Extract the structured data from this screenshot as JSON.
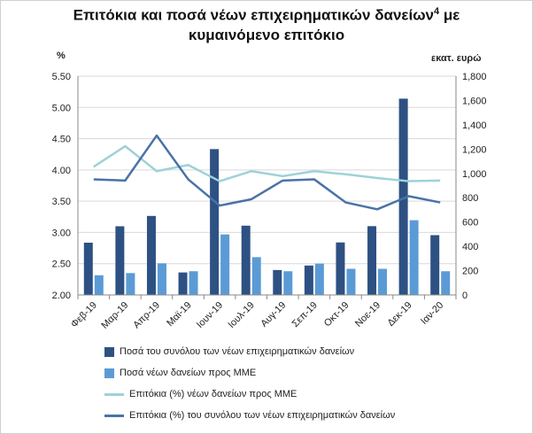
{
  "title_line1": "Επιτόκια και ποσά νέων επιχειρηματικών δανείων",
  "title_sup": "4",
  "title_suffix": " με",
  "title_line2": "κυμαινόμενο επιτόκιο",
  "colors": {
    "bar_total": "#2e5183",
    "bar_sme": "#5b9bd5",
    "line_sme": "#9fd1d9",
    "line_total": "#4a72a8",
    "grid": "#d9d9d9",
    "axis": "#888888"
  },
  "chart_data": {
    "type": "bar+line",
    "categories": [
      "Φεβ-19",
      "Μαρ-19",
      "Απρ-19",
      "Μαϊ-19",
      "Ιουν-19",
      "Ιουλ-19",
      "Αυγ-19",
      "Σεπ-19",
      "Οκτ-19",
      "Νοε-19",
      "Δεκ-19",
      "Ιαν-20"
    ],
    "left_axis": {
      "label": "%",
      "min": 2.0,
      "max": 5.5,
      "step": 0.5,
      "tick_labels": [
        "2.00",
        "2.50",
        "3.00",
        "3.50",
        "4.00",
        "4.50",
        "5.00",
        "5.50"
      ]
    },
    "right_axis": {
      "label": "εκατ. ευρώ",
      "min": 0,
      "max": 1800,
      "step": 200,
      "tick_labels": [
        "0",
        "200",
        "400",
        "600",
        "800",
        "1,000",
        "1,200",
        "1,400",
        "1,600",
        "1,800"
      ]
    },
    "series": [
      {
        "name": "Ποσά του συνόλου των νέων επιχειρηματικών δανείων",
        "kind": "bar",
        "axis": "right",
        "values": [
          430,
          565,
          650,
          185,
          1200,
          570,
          205,
          242,
          432,
          566,
          1615,
          492
        ]
      },
      {
        "name": "Ποσά νέων δανείων προς ΜΜΕ",
        "kind": "bar",
        "axis": "right",
        "values": [
          162,
          180,
          260,
          195,
          498,
          311,
          195,
          258,
          215,
          215,
          615,
          195
        ]
      },
      {
        "name": "Επιτόκια (%) νέων δανείων προς ΜΜΕ",
        "kind": "line",
        "axis": "left",
        "values": [
          4.05,
          4.38,
          3.98,
          4.08,
          3.82,
          3.98,
          3.9,
          3.98,
          3.93,
          3.87,
          3.82,
          3.83
        ]
      },
      {
        "name": "Επιτόκια (%) του συνόλου των νέων επιχειρηματικών δανείων",
        "kind": "line",
        "axis": "left",
        "values": [
          3.85,
          3.83,
          4.55,
          3.85,
          3.43,
          3.53,
          3.83,
          3.85,
          3.48,
          3.37,
          3.58,
          3.48
        ]
      }
    ],
    "grid": true,
    "legend_position": "bottom"
  }
}
